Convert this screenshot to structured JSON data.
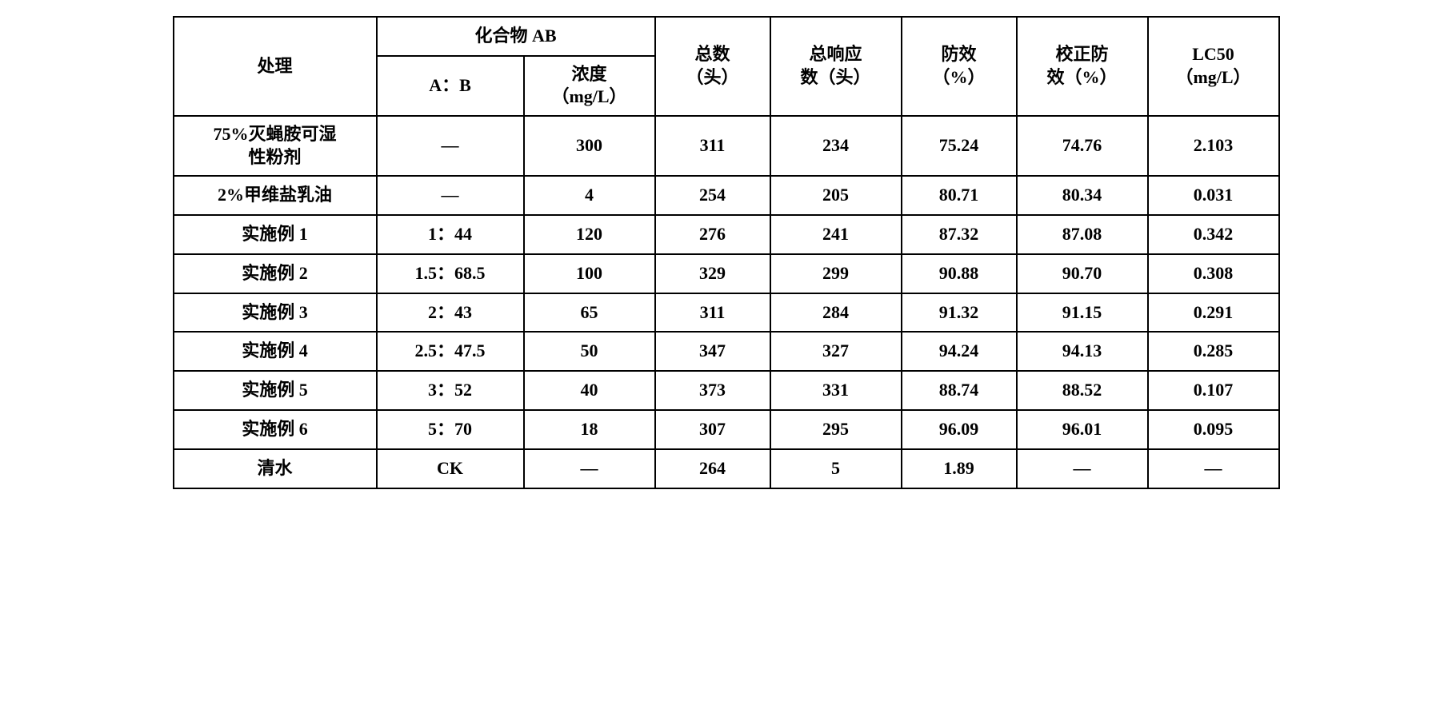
{
  "table": {
    "type": "table",
    "background_color": "#ffffff",
    "border_color": "#000000",
    "border_width": 2,
    "font_weight": "bold",
    "font_size_pt": 16,
    "font_family": "SimSun, Times New Roman, serif",
    "text_color": "#000000",
    "headers": {
      "treatment": "处理",
      "compound_ab": "化合物 AB",
      "ab_ratio": "A：B",
      "concentration_line1": "浓度",
      "concentration_line2": "（mg/L）",
      "total_line1": "总数",
      "total_line2": "（头）",
      "response_line1": "总响应",
      "response_line2": "数（头）",
      "efficacy_line1": "防效",
      "efficacy_line2": "（%）",
      "corrected_line1": "校正防",
      "corrected_line2": "效（%）",
      "lc50_line1": "LC50",
      "lc50_line2": "（mg/L）"
    },
    "rows": [
      {
        "treatment_line1": "75%灭蝇胺可湿",
        "treatment_line2": "性粉剂",
        "ab_ratio": "—",
        "concentration": "300",
        "total": "311",
        "response": "234",
        "efficacy": "75.24",
        "corrected": "74.76",
        "lc50": "2.103"
      },
      {
        "treatment_line1": "2%甲维盐乳油",
        "treatment_line2": "",
        "ab_ratio": "—",
        "concentration": "4",
        "total": "254",
        "response": "205",
        "efficacy": "80.71",
        "corrected": "80.34",
        "lc50": "0.031"
      },
      {
        "treatment_line1": "实施例 1",
        "treatment_line2": "",
        "ab_ratio": "1：44",
        "concentration": "120",
        "total": "276",
        "response": "241",
        "efficacy": "87.32",
        "corrected": "87.08",
        "lc50": "0.342"
      },
      {
        "treatment_line1": "实施例 2",
        "treatment_line2": "",
        "ab_ratio": "1.5：68.5",
        "concentration": "100",
        "total": "329",
        "response": "299",
        "efficacy": "90.88",
        "corrected": "90.70",
        "lc50": "0.308"
      },
      {
        "treatment_line1": "实施例 3",
        "treatment_line2": "",
        "ab_ratio": "2：43",
        "concentration": "65",
        "total": "311",
        "response": "284",
        "efficacy": "91.32",
        "corrected": "91.15",
        "lc50": "0.291"
      },
      {
        "treatment_line1": "实施例 4",
        "treatment_line2": "",
        "ab_ratio": "2.5：47.5",
        "concentration": "50",
        "total": "347",
        "response": "327",
        "efficacy": "94.24",
        "corrected": "94.13",
        "lc50": "0.285"
      },
      {
        "treatment_line1": "实施例 5",
        "treatment_line2": "",
        "ab_ratio": "3：52",
        "concentration": "40",
        "total": "373",
        "response": "331",
        "efficacy": "88.74",
        "corrected": "88.52",
        "lc50": "0.107"
      },
      {
        "treatment_line1": "实施例 6",
        "treatment_line2": "",
        "ab_ratio": "5：70",
        "concentration": "18",
        "total": "307",
        "response": "295",
        "efficacy": "96.09",
        "corrected": "96.01",
        "lc50": "0.095"
      },
      {
        "treatment_line1": "清水",
        "treatment_line2": "",
        "ab_ratio": "CK",
        "concentration": "—",
        "total": "264",
        "response": "5",
        "efficacy": "1.89",
        "corrected": "—",
        "lc50": "—"
      }
    ]
  }
}
